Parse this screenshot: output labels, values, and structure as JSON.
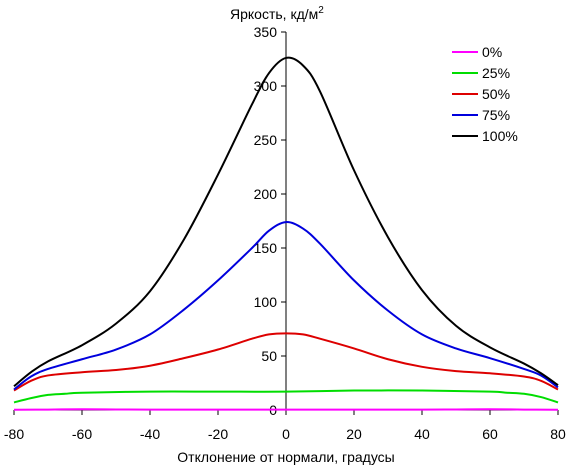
{
  "chart_data": {
    "type": "line",
    "ylabel": "Яркость, кд/м",
    "ylabel_sup": "2",
    "xlabel": "Отклонение от нормали, градусы",
    "xlim": [
      -80,
      80
    ],
    "ylim": [
      0,
      350
    ],
    "xticks": [
      -80,
      -60,
      -40,
      -20,
      0,
      20,
      40,
      60,
      80
    ],
    "yticks": [
      0,
      50,
      100,
      150,
      200,
      250,
      300,
      350
    ],
    "grid": false,
    "legend_position": "top-right",
    "series": [
      {
        "name": "0%",
        "color": "#ff00ff",
        "points": [
          [
            -80,
            0.2
          ],
          [
            -70,
            0.4
          ],
          [
            -60,
            0.7
          ],
          [
            -50,
            0.5
          ],
          [
            -40,
            0.3
          ],
          [
            -20,
            0.3
          ],
          [
            0,
            0.3
          ],
          [
            20,
            0.3
          ],
          [
            40,
            0.3
          ],
          [
            50,
            0.5
          ],
          [
            60,
            0.7
          ],
          [
            70,
            0.4
          ],
          [
            80,
            0.2
          ]
        ]
      },
      {
        "name": "25%",
        "color": "#00dd00",
        "points": [
          [
            -80,
            7
          ],
          [
            -75,
            11
          ],
          [
            -70,
            14
          ],
          [
            -65,
            15
          ],
          [
            -60,
            16
          ],
          [
            -40,
            17
          ],
          [
            -20,
            17
          ],
          [
            0,
            17
          ],
          [
            20,
            18
          ],
          [
            40,
            18
          ],
          [
            60,
            17
          ],
          [
            65,
            16
          ],
          [
            70,
            15
          ],
          [
            75,
            12
          ],
          [
            80,
            7
          ]
        ]
      },
      {
        "name": "50%",
        "color": "#dd0000",
        "points": [
          [
            -80,
            18
          ],
          [
            -75,
            27
          ],
          [
            -70,
            32
          ],
          [
            -60,
            35
          ],
          [
            -50,
            37
          ],
          [
            -40,
            41
          ],
          [
            -30,
            48
          ],
          [
            -20,
            56
          ],
          [
            -10,
            66
          ],
          [
            -5,
            70
          ],
          [
            0,
            71
          ],
          [
            5,
            70
          ],
          [
            10,
            66
          ],
          [
            20,
            57
          ],
          [
            30,
            47
          ],
          [
            40,
            40
          ],
          [
            50,
            36
          ],
          [
            60,
            34
          ],
          [
            70,
            31
          ],
          [
            75,
            27
          ],
          [
            80,
            19
          ]
        ]
      },
      {
        "name": "75%",
        "color": "#0000dd",
        "points": [
          [
            -80,
            19
          ],
          [
            -75,
            31
          ],
          [
            -70,
            38
          ],
          [
            -60,
            47
          ],
          [
            -50,
            56
          ],
          [
            -40,
            70
          ],
          [
            -30,
            93
          ],
          [
            -20,
            120
          ],
          [
            -10,
            150
          ],
          [
            -5,
            166
          ],
          [
            0,
            174
          ],
          [
            5,
            168
          ],
          [
            10,
            154
          ],
          [
            20,
            120
          ],
          [
            30,
            92
          ],
          [
            40,
            70
          ],
          [
            50,
            57
          ],
          [
            60,
            48
          ],
          [
            70,
            38
          ],
          [
            75,
            32
          ],
          [
            80,
            21
          ]
        ]
      },
      {
        "name": "100%",
        "color": "#000000",
        "points": [
          [
            -80,
            22
          ],
          [
            -75,
            35
          ],
          [
            -70,
            45
          ],
          [
            -60,
            60
          ],
          [
            -50,
            80
          ],
          [
            -40,
            110
          ],
          [
            -30,
            158
          ],
          [
            -20,
            218
          ],
          [
            -10,
            283
          ],
          [
            -5,
            312
          ],
          [
            0,
            326
          ],
          [
            5,
            319
          ],
          [
            10,
            295
          ],
          [
            20,
            222
          ],
          [
            30,
            160
          ],
          [
            40,
            111
          ],
          [
            50,
            78
          ],
          [
            60,
            58
          ],
          [
            70,
            43
          ],
          [
            75,
            34
          ],
          [
            80,
            23
          ]
        ]
      }
    ]
  }
}
